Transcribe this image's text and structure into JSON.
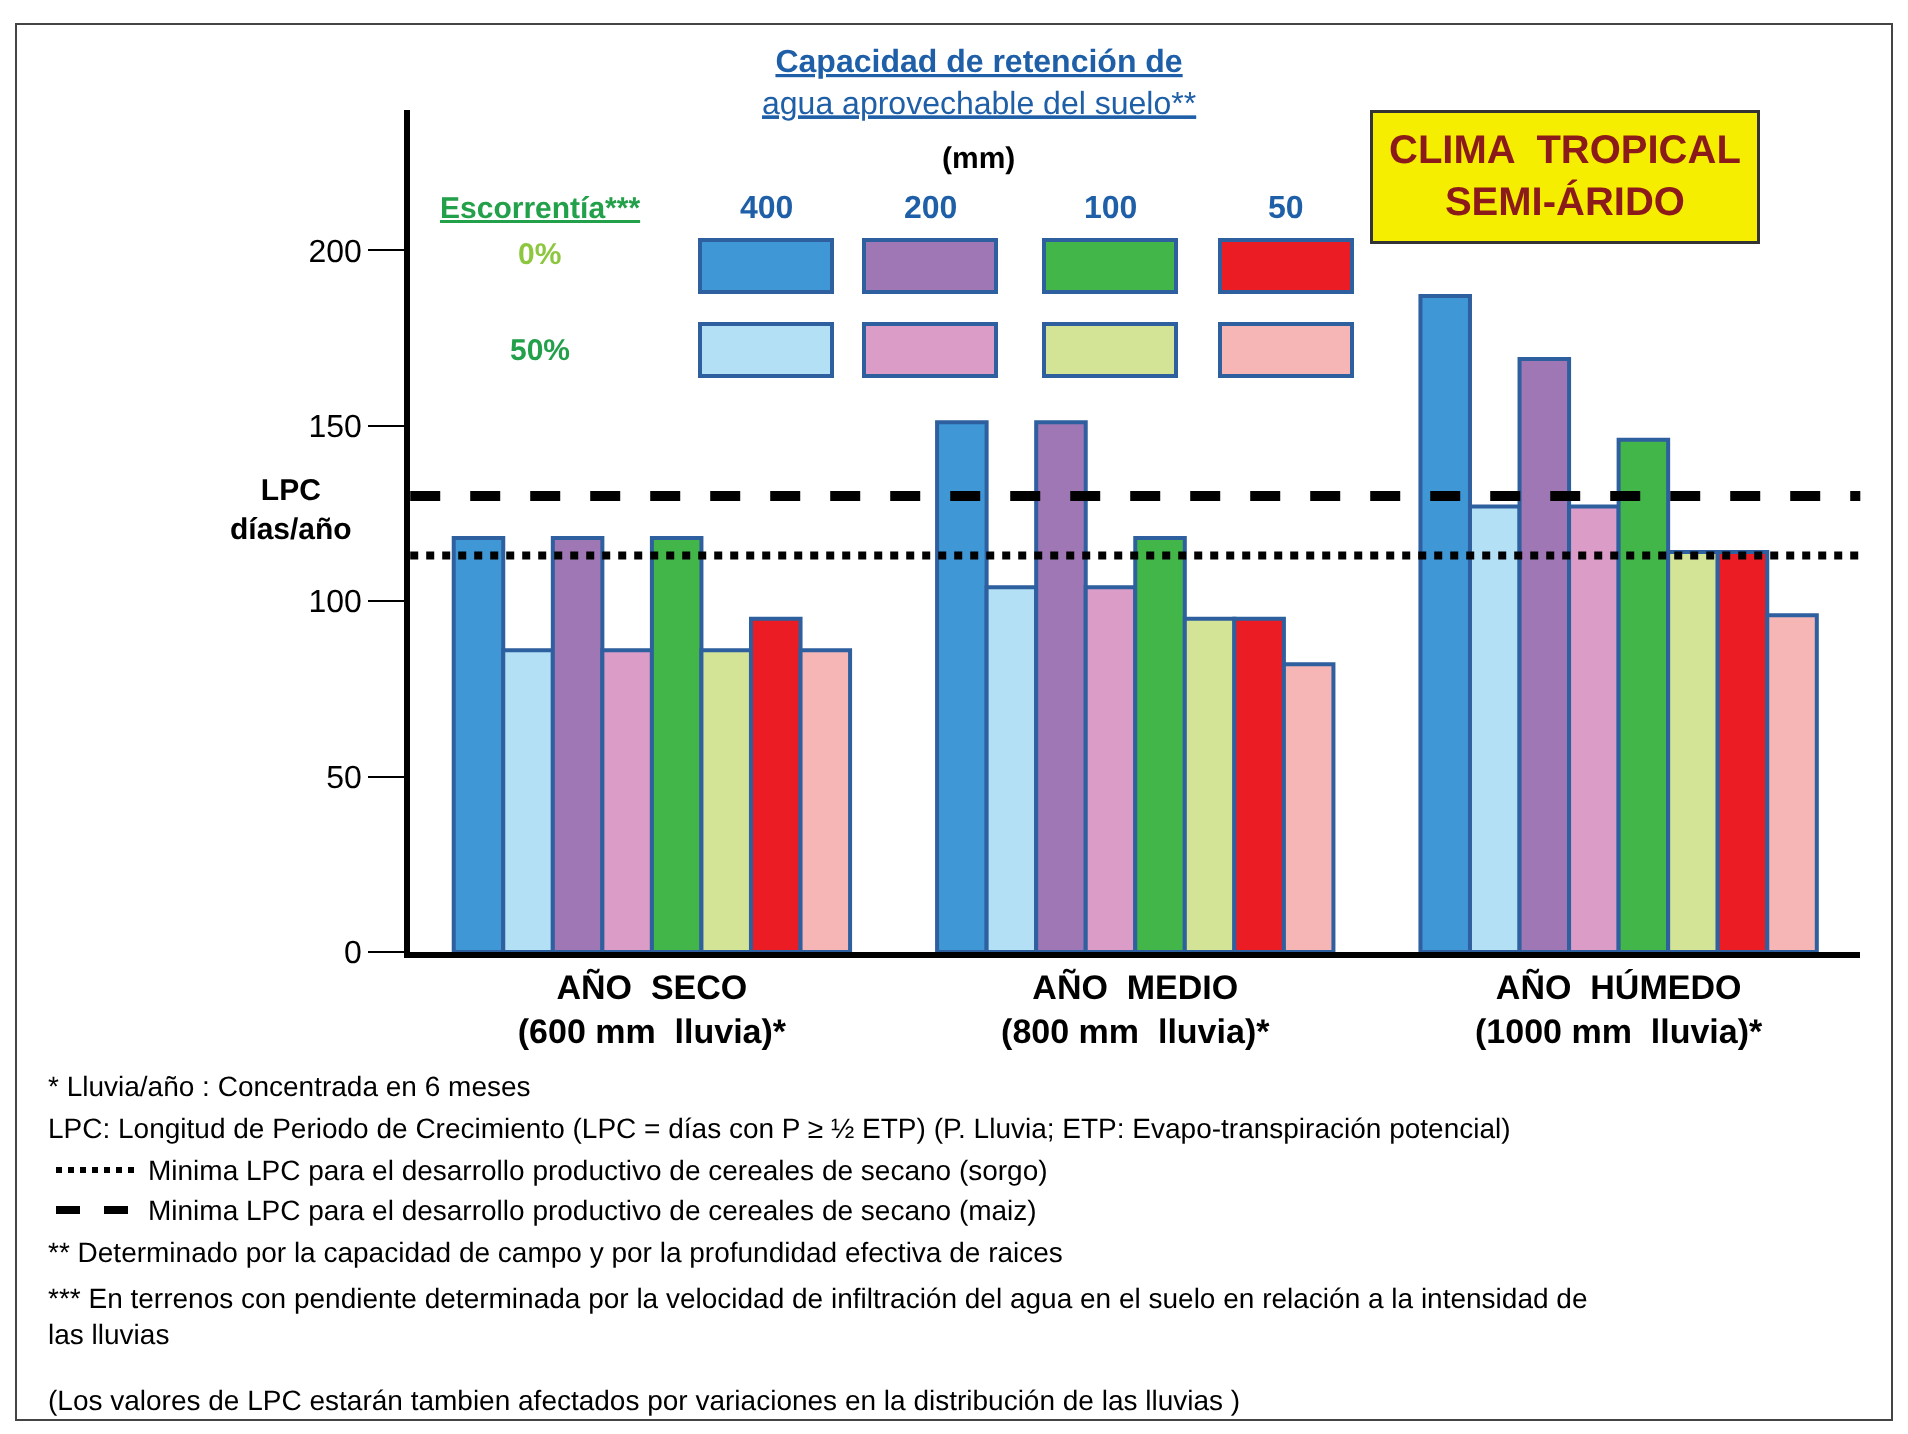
{
  "chart_data": {
    "type": "bar",
    "title": "CLIMA  TROPICAL\nSEMI-ÁRIDO",
    "ylabel": "LPC\ndías/año",
    "categories": [
      "AÑO  SECO\n(600 mm  lluvia)*",
      "AÑO  MEDIO\n(800 mm  lluvia)*",
      "AÑO  HÚMEDO\n(1000 mm  lluvia)*"
    ],
    "series": [
      {
        "color": "#3f97d6",
        "values": [
          118,
          151,
          187
        ]
      },
      {
        "color": "#b3e0f5",
        "values": [
          86,
          104,
          127
        ]
      },
      {
        "color": "#9f77b5",
        "values": [
          118,
          151,
          169
        ]
      },
      {
        "color": "#dc9cc8",
        "values": [
          86,
          104,
          127
        ]
      },
      {
        "color": "#43b649",
        "values": [
          118,
          118,
          146
        ]
      },
      {
        "color": "#d4e497",
        "values": [
          86,
          95,
          114
        ]
      },
      {
        "color": "#ec1c24",
        "values": [
          95,
          95,
          114
        ]
      },
      {
        "color": "#f6b6b6",
        "values": [
          86,
          82,
          96
        ]
      }
    ],
    "ylim": [
      0,
      240
    ],
    "yticks": [
      0,
      50,
      100,
      150,
      200
    ],
    "legend": "bottom left",
    "ref_lines": [
      {
        "axis": "y",
        "value": 113,
        "line_style": "dotted",
        "color": "#000000",
        "label": "Minima LPC para el desarrollo productivo de cereales de secano (sorgo)"
      },
      {
        "axis": "y",
        "value": 130,
        "line_style": "dashed",
        "color": "#000000",
        "label": "Minima LPC para el desarrollo productivo de cereales de secano (maiz)"
      }
    ],
    "annotations": [
      "Capacidad de retención de\nagua aprovechable del suelo**",
      "(mm)",
      "Escorrentía***",
      "400",
      "200",
      "100",
      "50",
      "0%",
      "50%",
      "* Lluvia/año : Concentrada en 6 meses",
      "LPC: Longitud de Periodo de Crecimiento (LPC = días con P ≥ ½ ETP) (P. Lluvia; ETP: Evapo-transpiración potencial)",
      "** Determinado por la capacidad de campo y por la profundidad efectiva de raices",
      "*** En terrenos con pendiente determinada por la velocidad de infiltración del agua en el suelo en relación a la intensidad de\nlas lluvias",
      "(Los valores de LPC estarán tambien afectados por variaciones en la distribución de las lluvias )"
    ]
  }
}
